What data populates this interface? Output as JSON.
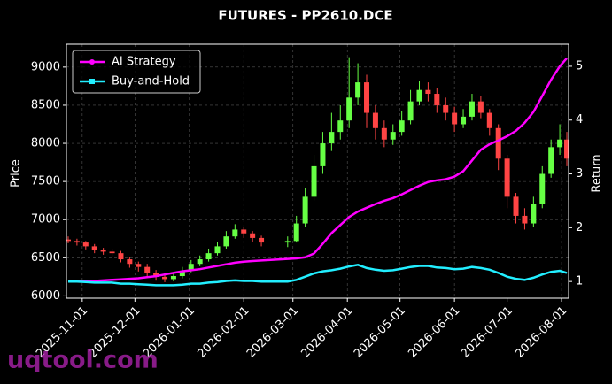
{
  "chart_data": {
    "type": "candlestick",
    "title": "FUTURES - PP2610.DCE",
    "ylabel": "Price",
    "y2label": "Return",
    "watermark": "uqtool.com",
    "grid": true,
    "legend": "upper left",
    "up_color": "#66ff44",
    "down_color": "#ff4444",
    "xlim": [
      "2025-10-23",
      "2026-08-05"
    ],
    "xticks": [
      "2025-11-01",
      "2025-12-01",
      "2026-01-01",
      "2026-02-01",
      "2026-03-01",
      "2026-04-01",
      "2026-05-01",
      "2026-06-01",
      "2026-07-01",
      "2026-08-01"
    ],
    "ylim": [
      5970,
      9300
    ],
    "yticks": [
      6000,
      6500,
      7000,
      7500,
      8000,
      8500,
      9000
    ],
    "y2lim": [
      0.69,
      5.41
    ],
    "y2ticks": [
      1,
      2,
      3,
      4,
      5
    ],
    "x": [
      "2025-10-24",
      "2025-10-29",
      "2025-11-03",
      "2025-11-08",
      "2025-11-13",
      "2025-11-18",
      "2025-11-23",
      "2025-11-28",
      "2025-12-03",
      "2025-12-08",
      "2025-12-13",
      "2025-12-18",
      "2025-12-23",
      "2025-12-28",
      "2026-01-02",
      "2026-01-07",
      "2026-01-12",
      "2026-01-17",
      "2026-01-22",
      "2026-01-27",
      "2026-02-01",
      "2026-02-06",
      "2026-02-11",
      "2026-02-26",
      "2026-03-03",
      "2026-03-08",
      "2026-03-13",
      "2026-03-18",
      "2026-03-23",
      "2026-03-28",
      "2026-04-02",
      "2026-04-07",
      "2026-04-12",
      "2026-04-17",
      "2026-04-22",
      "2026-04-27",
      "2026-05-02",
      "2026-05-07",
      "2026-05-12",
      "2026-05-17",
      "2026-05-22",
      "2026-05-27",
      "2026-06-01",
      "2026-06-06",
      "2026-06-11",
      "2026-06-16",
      "2026-06-21",
      "2026-06-26",
      "2026-07-01",
      "2026-07-06",
      "2026-07-11",
      "2026-07-16",
      "2026-07-21",
      "2026-07-26",
      "2026-07-31",
      "2026-08-04"
    ],
    "open": [
      6740,
      6720,
      6700,
      6650,
      6600,
      6580,
      6560,
      6480,
      6420,
      6380,
      6300,
      6250,
      6220,
      6260,
      6330,
      6420,
      6480,
      6560,
      6650,
      6780,
      6870,
      6820,
      6760,
      6700,
      6720,
      6950,
      7300,
      7700,
      8000,
      8150,
      8300,
      8600,
      8800,
      8400,
      8200,
      8050,
      8150,
      8300,
      8550,
      8700,
      8650,
      8500,
      8400,
      8250,
      8350,
      8550,
      8400,
      8200,
      7800,
      7300,
      7050,
      6950,
      7200,
      7600,
      7950,
      8050
    ],
    "high": [
      6780,
      6750,
      6720,
      6680,
      6630,
      6620,
      6590,
      6510,
      6450,
      6420,
      6340,
      6290,
      6310,
      6380,
      6470,
      6530,
      6620,
      6710,
      6850,
      6940,
      6900,
      6850,
      6790,
      6780,
      7050,
      7420,
      7850,
      8150,
      8400,
      8500,
      9130,
      9050,
      8900,
      8500,
      8300,
      8250,
      8420,
      8700,
      8820,
      8800,
      8720,
      8600,
      8480,
      8450,
      8650,
      8620,
      8450,
      8250,
      7850,
      7350,
      7150,
      7300,
      7700,
      8050,
      8250,
      8150
    ],
    "low": [
      6690,
      6660,
      6610,
      6560,
      6540,
      6510,
      6440,
      6370,
      6320,
      6260,
      6200,
      6180,
      6190,
      6230,
      6310,
      6390,
      6450,
      6530,
      6620,
      6750,
      6760,
      6710,
      6650,
      6640,
      6700,
      6900,
      7250,
      7600,
      7900,
      8050,
      8200,
      8500,
      8200,
      8050,
      7950,
      7980,
      8100,
      8250,
      8500,
      8550,
      8400,
      8300,
      8150,
      8200,
      8300,
      8330,
      8100,
      7650,
      7150,
      6950,
      6870,
      6900,
      7150,
      7550,
      7850,
      7700
    ],
    "close": [
      6720,
      6700,
      6650,
      6600,
      6580,
      6560,
      6480,
      6420,
      6380,
      6300,
      6250,
      6220,
      6260,
      6330,
      6420,
      6480,
      6560,
      6650,
      6780,
      6870,
      6820,
      6760,
      6700,
      6720,
      6950,
      7300,
      7700,
      8000,
      8150,
      8300,
      8600,
      8800,
      8400,
      8200,
      8050,
      8150,
      8300,
      8550,
      8700,
      8650,
      8500,
      8400,
      8250,
      8350,
      8550,
      8400,
      8200,
      7800,
      7300,
      7050,
      6950,
      7200,
      7600,
      7950,
      8050,
      7800
    ],
    "series": [
      {
        "name": "AI Strategy",
        "color": "#ff00ff",
        "axis": "y2",
        "values": [
          1.0,
          1.0,
          1.0,
          1.01,
          1.02,
          1.03,
          1.04,
          1.05,
          1.06,
          1.08,
          1.1,
          1.13,
          1.16,
          1.19,
          1.21,
          1.23,
          1.26,
          1.29,
          1.32,
          1.35,
          1.37,
          1.38,
          1.39,
          1.42,
          1.43,
          1.45,
          1.52,
          1.7,
          1.9,
          2.05,
          2.2,
          2.3,
          2.37,
          2.44,
          2.5,
          2.55,
          2.62,
          2.7,
          2.78,
          2.85,
          2.88,
          2.9,
          2.95,
          3.05,
          3.25,
          3.45,
          3.55,
          3.62,
          3.7,
          3.8,
          3.95,
          4.15,
          4.45,
          4.75,
          5.0,
          5.15
        ]
      },
      {
        "name": "Buy-and-Hold",
        "color": "#22eeff",
        "axis": "y2",
        "values": [
          1.0,
          1.0,
          0.99,
          0.98,
          0.98,
          0.98,
          0.96,
          0.96,
          0.95,
          0.94,
          0.93,
          0.93,
          0.93,
          0.94,
          0.96,
          0.96,
          0.98,
          0.99,
          1.01,
          1.02,
          1.01,
          1.01,
          1.0,
          1.0,
          1.03,
          1.09,
          1.15,
          1.19,
          1.21,
          1.24,
          1.28,
          1.31,
          1.25,
          1.22,
          1.2,
          1.21,
          1.24,
          1.27,
          1.29,
          1.29,
          1.26,
          1.25,
          1.23,
          1.24,
          1.27,
          1.25,
          1.22,
          1.16,
          1.09,
          1.05,
          1.03,
          1.07,
          1.13,
          1.18,
          1.2,
          1.16
        ]
      }
    ]
  }
}
